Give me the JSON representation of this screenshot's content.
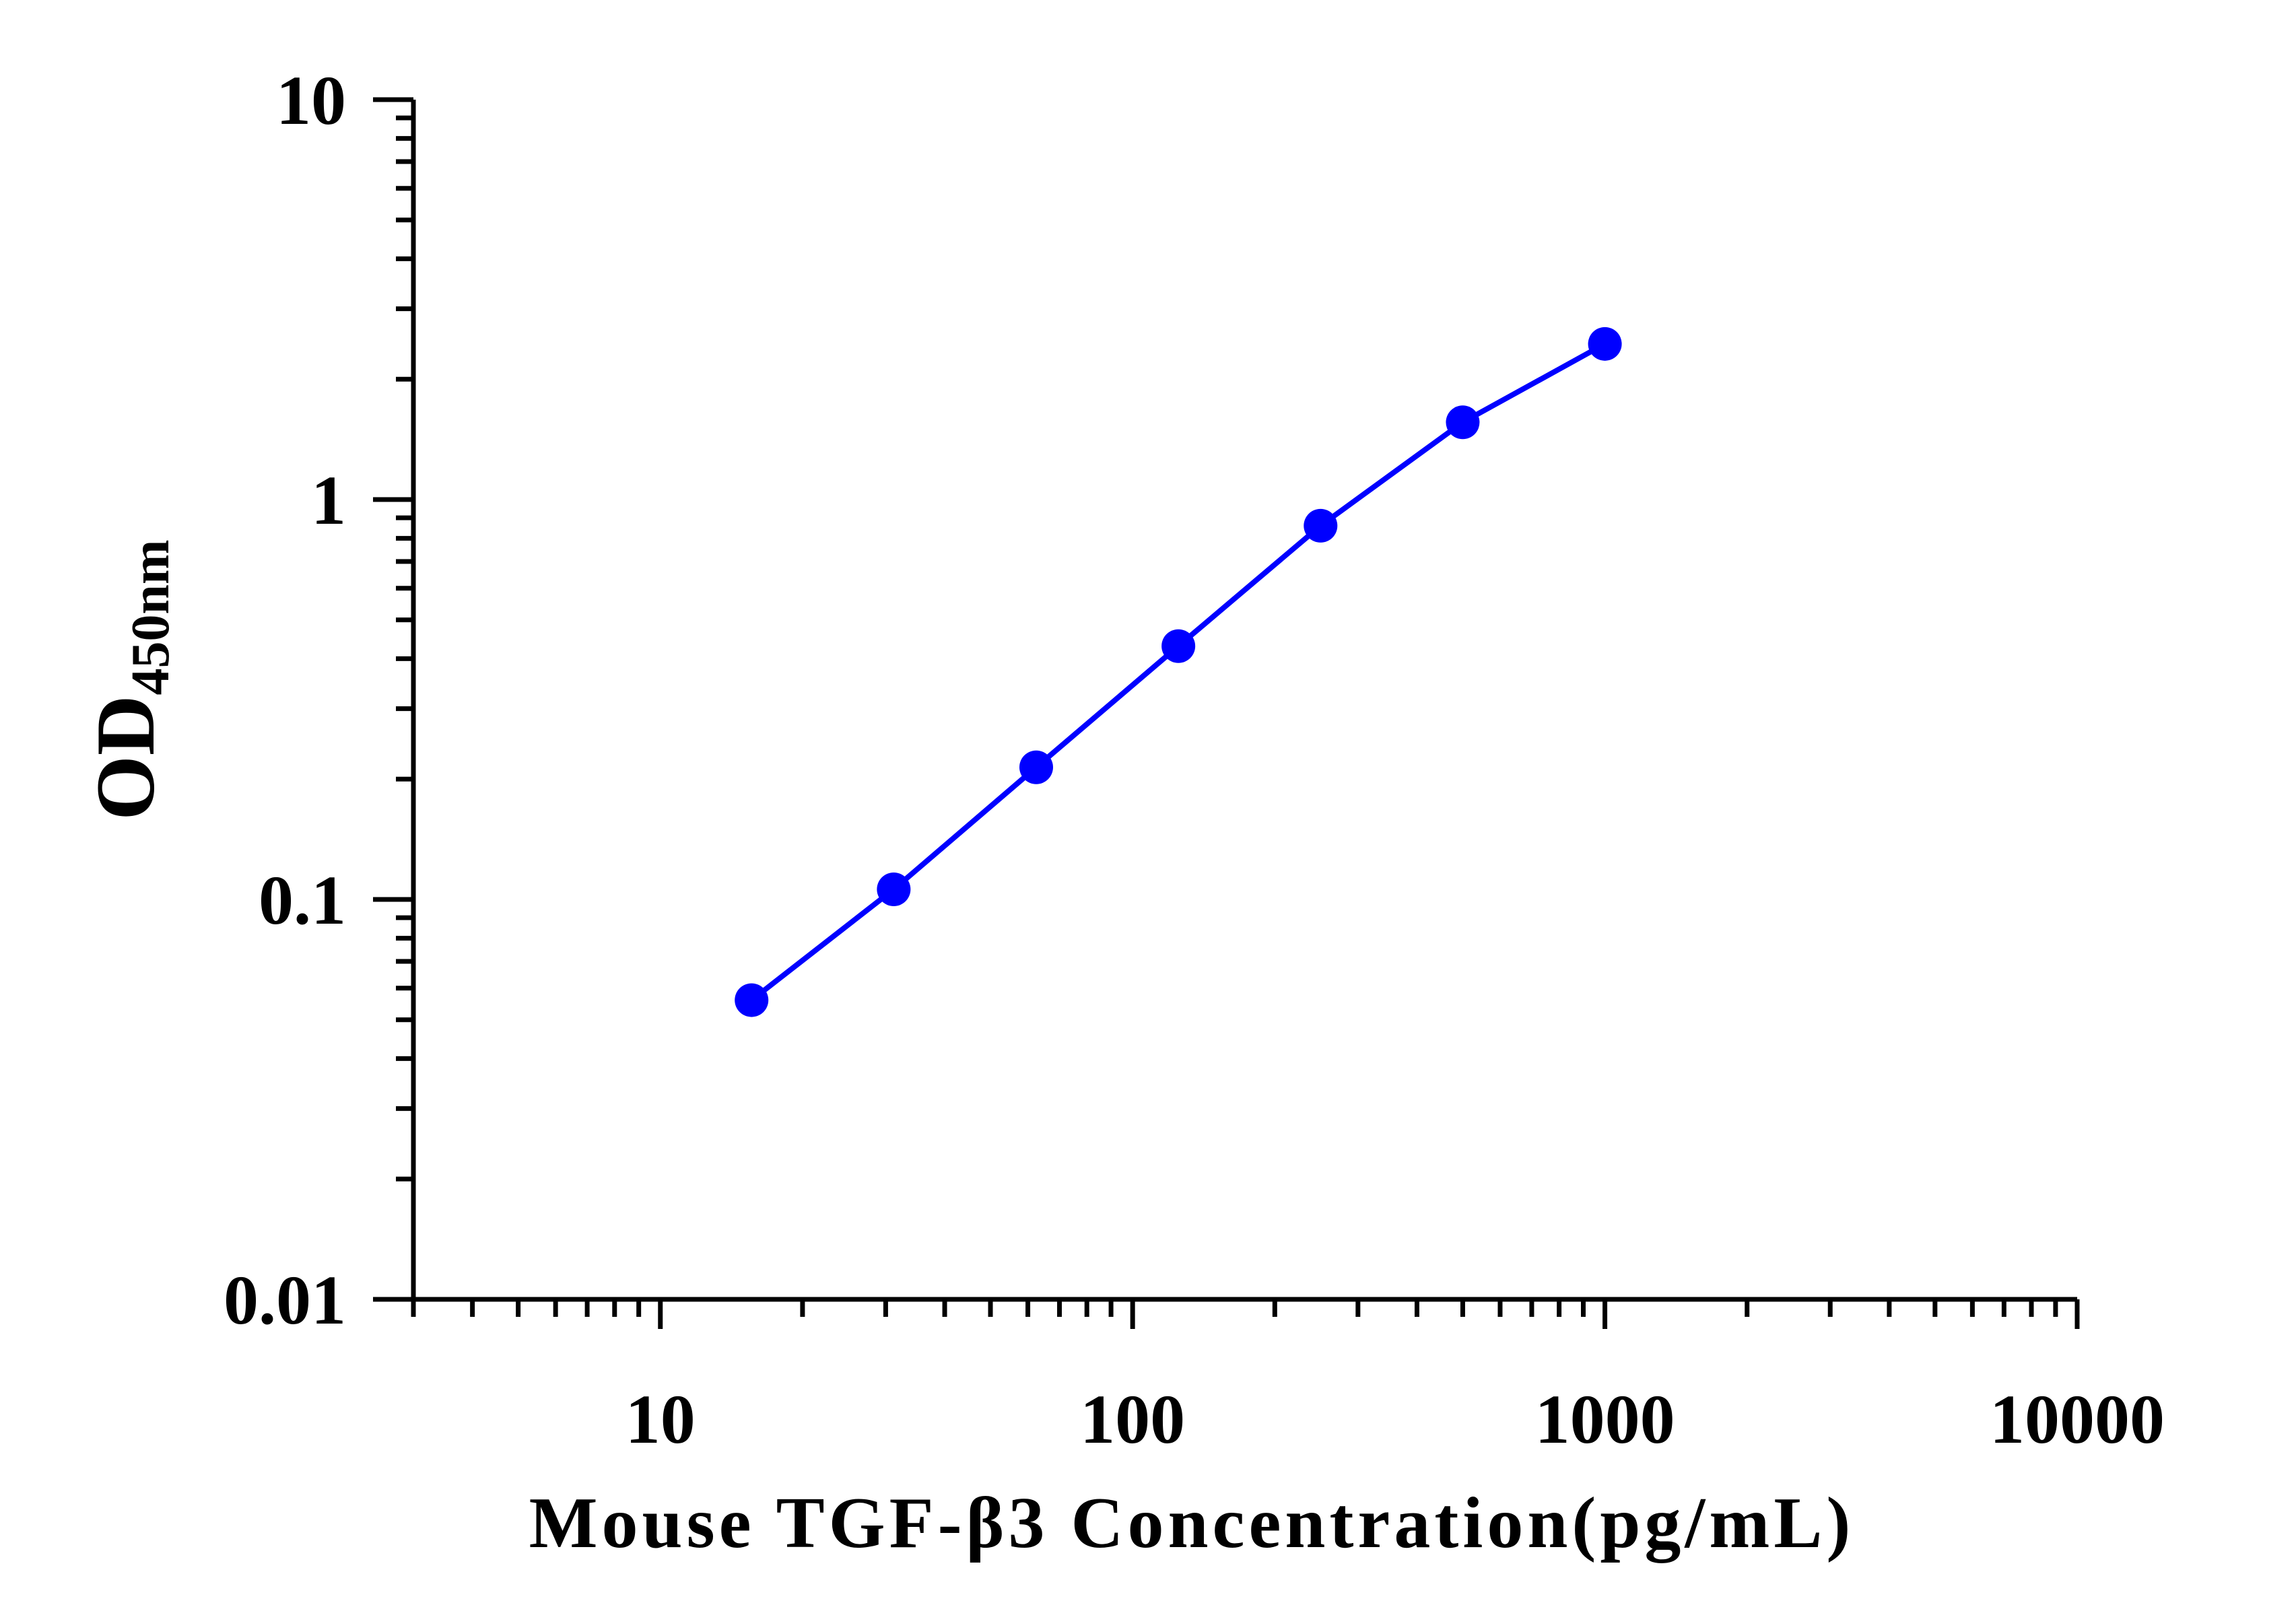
{
  "chart_data": {
    "type": "line",
    "title": "",
    "xlabel": "Mouse TGF-β3 Concentration(pg/mL)",
    "ylabel_main": "OD",
    "ylabel_sub": "450nm",
    "xscale": "log",
    "yscale": "log",
    "xlim": [
      3,
      10000
    ],
    "ylim": [
      0.01,
      10
    ],
    "x_ticks": [
      10,
      100,
      1000,
      10000
    ],
    "x_tick_labels": [
      "10",
      "100",
      "1000",
      "10000"
    ],
    "y_ticks": [
      0.01,
      0.1,
      1,
      10
    ],
    "y_tick_labels": [
      "0.01",
      "0.1",
      "1",
      "10"
    ],
    "grid": false,
    "legend": "none",
    "series": [
      {
        "color": "#0000ff",
        "x": [
          15.6,
          31.2,
          62.5,
          125,
          250,
          500,
          1000
        ],
        "y": [
          0.056,
          0.106,
          0.214,
          0.43,
          0.86,
          1.56,
          2.45
        ]
      }
    ]
  }
}
